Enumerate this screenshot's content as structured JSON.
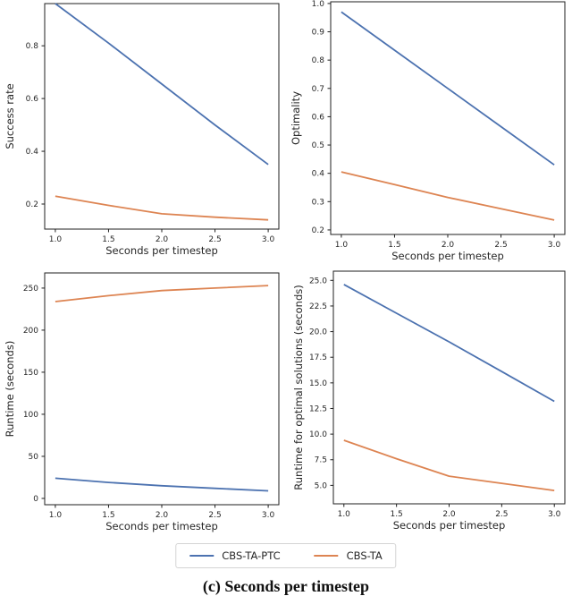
{
  "figure": {
    "caption": "(c) Seconds per timestep"
  },
  "colors": {
    "cbs_ta_ptc": "#4c72b0",
    "cbs_ta": "#dd8452",
    "spine": "#1f1f1f",
    "text": "#262626"
  },
  "legend": {
    "items": [
      {
        "label": "CBS-TA-PTC",
        "color": "#4c72b0"
      },
      {
        "label": "CBS-TA",
        "color": "#dd8452"
      }
    ]
  },
  "chart_data": [
    {
      "type": "line",
      "title": "",
      "xlabel": "Seconds per timestep",
      "ylabel": "Success rate",
      "grid": false,
      "x": [
        1.0,
        1.5,
        2.0,
        2.5,
        3.0
      ],
      "xlim": [
        0.9,
        3.1
      ],
      "ylim": [
        0.105,
        0.96
      ],
      "xticks": {
        "values": [
          1.0,
          1.5,
          2.0,
          2.5,
          3.0
        ],
        "labels": [
          "1.0",
          "1.5",
          "2.0",
          "2.5",
          "3.0"
        ]
      },
      "yticks": {
        "values": [
          0.2,
          0.4,
          0.6,
          0.8
        ],
        "labels": [
          "0.2",
          "0.4",
          "0.6",
          "0.8"
        ]
      },
      "series": [
        {
          "name": "CBS-TA-PTC",
          "color": "#4c72b0",
          "values": [
            0.96,
            0.81,
            0.655,
            0.5,
            0.35
          ]
        },
        {
          "name": "CBS-TA",
          "color": "#dd8452",
          "values": [
            0.23,
            0.195,
            0.163,
            0.15,
            0.14
          ]
        }
      ]
    },
    {
      "type": "line",
      "title": "",
      "xlabel": "Seconds per timestep",
      "ylabel": "Optimality",
      "grid": false,
      "x": [
        1.0,
        1.5,
        2.0,
        2.5,
        3.0
      ],
      "xlim": [
        0.9,
        3.1
      ],
      "ylim": [
        0.184,
        1.006
      ],
      "xticks": {
        "values": [
          1.0,
          1.5,
          2.0,
          2.5,
          3.0
        ],
        "labels": [
          "1.0",
          "1.5",
          "2.0",
          "2.5",
          "3.0"
        ]
      },
      "yticks": {
        "values": [
          0.2,
          0.3,
          0.4,
          0.5,
          0.6,
          0.7,
          0.8,
          0.9,
          1.0
        ],
        "labels": [
          "0.2",
          "0.3",
          "0.4",
          "0.5",
          "0.6",
          "0.7",
          "0.8",
          "0.9",
          "1.0"
        ]
      },
      "series": [
        {
          "name": "CBS-TA-PTC",
          "color": "#4c72b0",
          "values": [
            0.97,
            0.835,
            0.7,
            0.565,
            0.43
          ]
        },
        {
          "name": "CBS-TA",
          "color": "#dd8452",
          "values": [
            0.405,
            0.36,
            0.315,
            0.275,
            0.235
          ]
        }
      ]
    },
    {
      "type": "line",
      "title": "",
      "xlabel": "Seconds per timestep",
      "ylabel": "Runtime (seconds)",
      "grid": false,
      "x": [
        1.0,
        1.5,
        2.0,
        2.5,
        3.0
      ],
      "xlim": [
        0.9,
        3.1
      ],
      "ylim": [
        -7.5,
        268
      ],
      "xticks": {
        "values": [
          1.0,
          1.5,
          2.0,
          2.5,
          3.0
        ],
        "labels": [
          "1.0",
          "1.5",
          "2.0",
          "2.5",
          "3.0"
        ]
      },
      "yticks": {
        "values": [
          0,
          50,
          100,
          150,
          200,
          250
        ],
        "labels": [
          "0",
          "50",
          "100",
          "150",
          "200",
          "250"
        ]
      },
      "series": [
        {
          "name": "CBS-TA-PTC",
          "color": "#4c72b0",
          "values": [
            24,
            19,
            15,
            12,
            9
          ]
        },
        {
          "name": "CBS-TA",
          "color": "#dd8452",
          "values": [
            234,
            241,
            247,
            250,
            253
          ]
        }
      ]
    },
    {
      "type": "line",
      "title": "",
      "xlabel": "Seconds per timestep",
      "ylabel": "Runtime for optimal solutions (seconds)",
      "grid": false,
      "x": [
        1.0,
        1.5,
        2.0,
        2.5,
        3.0
      ],
      "xlim": [
        0.9,
        3.1
      ],
      "ylim": [
        3.2,
        25.9
      ],
      "xticks": {
        "values": [
          1.0,
          1.5,
          2.0,
          2.5,
          3.0
        ],
        "labels": [
          "1.0",
          "1.5",
          "2.0",
          "2.5",
          "3.0"
        ]
      },
      "yticks": {
        "values": [
          5.0,
          7.5,
          10.0,
          12.5,
          15.0,
          17.5,
          20.0,
          22.5,
          25.0
        ],
        "labels": [
          "5.0",
          "7.5",
          "10.0",
          "12.5",
          "15.0",
          "17.5",
          "20.0",
          "22.5",
          "25.0"
        ]
      },
      "series": [
        {
          "name": "CBS-TA-PTC",
          "color": "#4c72b0",
          "values": [
            24.6,
            21.8,
            19.0,
            16.1,
            13.2
          ]
        },
        {
          "name": "CBS-TA",
          "color": "#dd8452",
          "values": [
            9.4,
            7.6,
            5.9,
            5.2,
            4.5
          ]
        }
      ]
    }
  ]
}
